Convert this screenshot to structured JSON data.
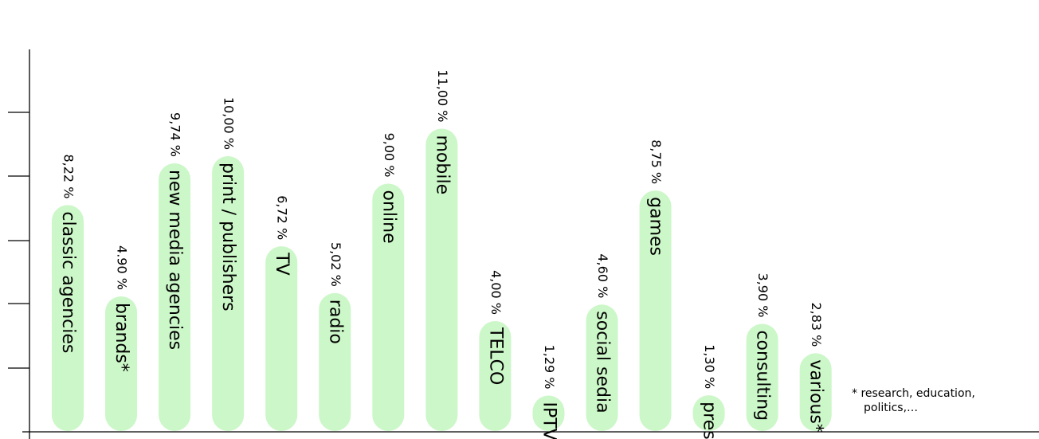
{
  "chart_data": {
    "type": "bar",
    "orientation": "vertical",
    "categories": [
      "classic agencies",
      "brands*",
      "new media agencies",
      "print / publishers",
      "TV",
      "radio",
      "online",
      "mobile",
      "TELCO",
      "IPTV",
      "social sedia",
      "games",
      "press",
      "consulting",
      "various*"
    ],
    "values": [
      8.22,
      4.9,
      9.74,
      10.0,
      6.72,
      5.02,
      9.0,
      11.0,
      4.0,
      1.29,
      4.6,
      8.75,
      1.3,
      3.9,
      2.83
    ],
    "value_labels": [
      "8,22 %",
      "4.90 %",
      "9,74 %",
      "10,00 %",
      "6,72 %",
      "5,02 %",
      "9,00 %",
      "11,00 %",
      "4,00 %",
      "1,29 %",
      "4,60 %",
      "8,75 %",
      "1,30 %",
      "3,90 %",
      "2,83 %"
    ],
    "ylim": [
      0,
      12
    ],
    "grid": false,
    "legend": "none",
    "colors": {
      "bar": "#ccf7c8",
      "text": "#000000",
      "axis": "#000000"
    }
  },
  "footnote": {
    "line1": "* research, education,",
    "line2": "politics,…"
  }
}
